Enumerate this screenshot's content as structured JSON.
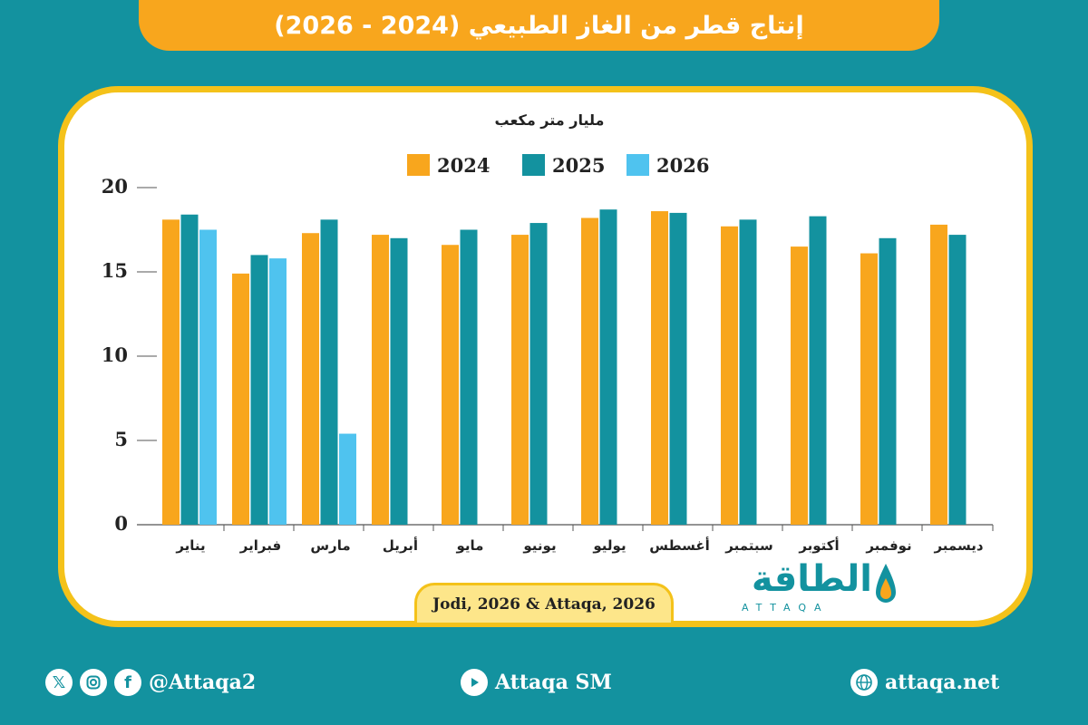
{
  "header": {
    "title": "إنتاج قطر من الغاز الطبيعي (2024 - 2026)"
  },
  "colors": {
    "y2024": "#f8a61d",
    "y2025": "#13929f",
    "y2026": "#4fc3ef"
  },
  "chart_data": {
    "type": "bar",
    "unit_label": "مليار متر مكعب",
    "categories": [
      "يناير",
      "فبراير",
      "مارس",
      "أبريل",
      "مايو",
      "يونيو",
      "يوليو",
      "أغسطس",
      "سبتمبر",
      "أكتوبر",
      "نوفمبر",
      "ديسمبر"
    ],
    "series": [
      {
        "name": "2024",
        "color": "#f8a61d",
        "values": [
          18.1,
          14.9,
          17.3,
          17.2,
          16.6,
          17.2,
          18.2,
          18.6,
          17.7,
          16.5,
          16.1,
          17.8
        ]
      },
      {
        "name": "2025",
        "color": "#13929f",
        "values": [
          18.4,
          16.0,
          18.1,
          17.0,
          17.5,
          17.9,
          18.7,
          18.5,
          18.1,
          18.3,
          17.0,
          17.2
        ]
      },
      {
        "name": "2026",
        "color": "#4fc3ef",
        "values": [
          17.5,
          15.8,
          5.4,
          null,
          null,
          null,
          null,
          null,
          null,
          null,
          null,
          null
        ]
      }
    ],
    "y_ticks": [
      "0",
      "5",
      "10",
      "15",
      "20"
    ],
    "ylim": [
      0,
      20
    ],
    "legend_position": "top"
  },
  "source": "Jodi, 2026 & Attaqa, 2026",
  "logo": {
    "arabic": "الطاقة",
    "english": "ATTAQA"
  },
  "footer": {
    "social_handle": "@Attaqa2",
    "youtube": "Attaqa SM",
    "website": "attaqa.net"
  }
}
